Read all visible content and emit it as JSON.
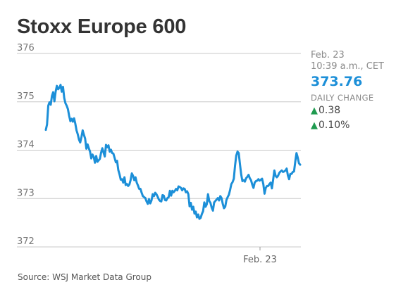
{
  "header": {
    "title": "Stoxx Europe 600"
  },
  "quote": {
    "date": "Feb. 23",
    "time": "10:39 a.m., CET",
    "price": "373.76",
    "daily_change_label": "DAILY CHANGE",
    "change_points": "0.38",
    "change_percent": "0.10%",
    "direction": "up"
  },
  "source": "Source: WSJ Market Data Group",
  "colors": {
    "line": "#1c8fd8",
    "price": "#1c8fd8",
    "up_arrow": "#1f9a4f",
    "gridline": "#c8c8c8"
  },
  "chart_data": {
    "type": "line",
    "title": "Stoxx Europe 600",
    "xlabel": "",
    "ylabel": "",
    "ylim": [
      372,
      376
    ],
    "y_ticks": [
      "376",
      "375",
      "374",
      "373",
      "372"
    ],
    "x_tick_labels": [
      "Feb. 23"
    ],
    "grid": true,
    "series": [
      {
        "values": [
          374.42,
          374.53,
          374.92,
          374.99,
          374.94,
          375.12,
          375.2,
          375.01,
          375.21,
          375.33,
          375.26,
          375.29,
          375.35,
          375.21,
          375.31,
          375.08,
          374.97,
          374.92,
          374.85,
          374.71,
          374.6,
          374.65,
          374.59,
          374.66,
          374.55,
          374.41,
          374.33,
          374.22,
          374.16,
          374.27,
          374.41,
          374.32,
          374.24,
          374.03,
          374.12,
          374.04,
          373.97,
          373.83,
          373.91,
          373.86,
          373.74,
          373.88,
          373.76,
          373.79,
          373.82,
          373.95,
          374.04,
          373.95,
          373.87,
          374.11,
          374.06,
          374.1,
          373.97,
          374.01,
          373.94,
          373.93,
          373.84,
          373.75,
          373.78,
          373.59,
          373.5,
          373.39,
          373.4,
          373.33,
          373.44,
          373.28,
          373.3,
          373.26,
          373.29,
          373.38,
          373.52,
          373.47,
          373.38,
          373.44,
          373.33,
          373.27,
          373.2,
          373.2,
          373.12,
          373.05,
          373.03,
          373.01,
          372.94,
          372.89,
          372.99,
          372.9,
          372.96,
          373.09,
          373.05,
          373.12,
          373.09,
          373.04,
          372.98,
          372.95,
          372.94,
          373.07,
          373.06,
          372.97,
          372.96,
          373.01,
          373.03,
          373.16,
          373.06,
          373.16,
          373.13,
          373.16,
          373.2,
          373.17,
          373.25,
          373.24,
          373.22,
          373.17,
          373.21,
          373.2,
          373.13,
          373.15,
          373.09,
          372.84,
          372.91,
          372.77,
          372.83,
          372.69,
          372.73,
          372.61,
          372.67,
          372.58,
          372.6,
          372.68,
          372.74,
          372.92,
          372.83,
          372.88,
          373.09,
          372.95,
          372.91,
          372.81,
          372.75,
          372.92,
          372.95,
          372.98,
          373.01,
          372.96,
          373.05,
          373.01,
          372.89,
          372.8,
          372.83,
          372.97,
          373.03,
          373.08,
          373.18,
          373.3,
          373.34,
          373.41,
          373.68,
          373.89,
          373.97,
          373.94,
          373.71,
          373.5,
          373.36,
          373.38,
          373.35,
          373.42,
          373.45,
          373.49,
          373.42,
          373.38,
          373.29,
          373.22,
          373.33,
          373.36,
          373.37,
          373.4,
          373.37,
          373.39,
          373.41,
          373.3,
          373.1,
          373.22,
          373.26,
          373.26,
          373.3,
          373.33,
          373.21,
          373.39,
          373.58,
          373.47,
          373.44,
          373.47,
          373.53,
          373.56,
          373.58,
          373.55,
          373.56,
          373.58,
          373.62,
          373.48,
          373.4,
          373.51,
          373.51,
          373.55,
          373.56,
          373.76,
          373.94,
          373.85,
          373.73,
          373.7
        ]
      }
    ]
  }
}
